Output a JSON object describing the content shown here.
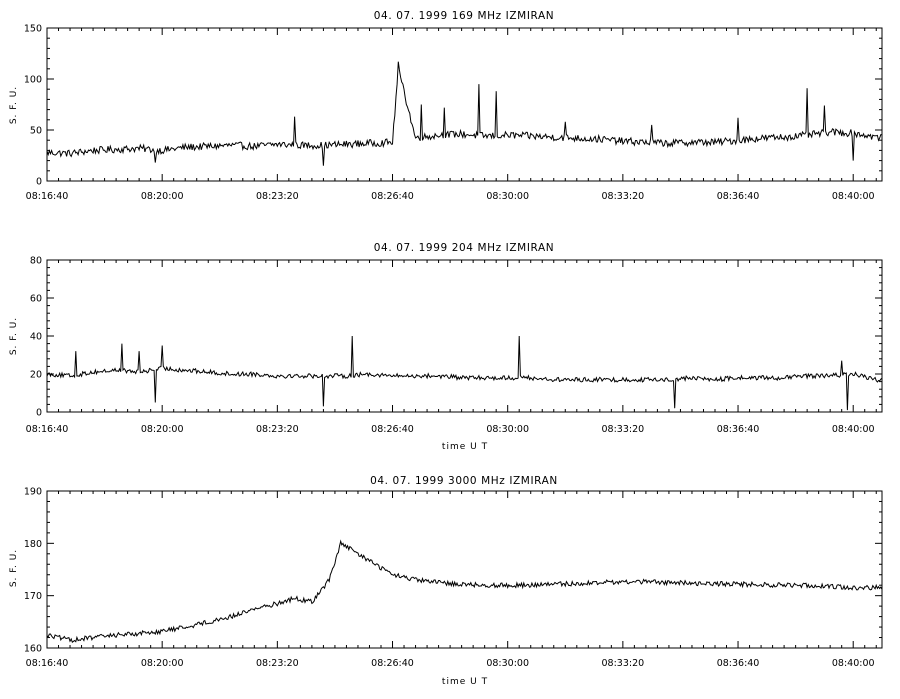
{
  "chart_data": [
    {
      "type": "line",
      "title": "04. 07. 1999   169 MHz   IZMIRAN",
      "ylabel": "S. F. U.",
      "xlabel": "",
      "ylim": [
        0,
        150
      ],
      "yticks": [
        0,
        50,
        100,
        150
      ],
      "xlim_seconds": [
        0,
        1450
      ],
      "xtick_labels": [
        "08:16:40",
        "08:20:00",
        "08:23:20",
        "08:26:40",
        "08:30:00",
        "08:33:20",
        "08:36:40",
        "08:40:00"
      ],
      "grid": false,
      "series": [
        {
          "time": [
            "08:16:40",
            "08:17:20",
            "08:18:00",
            "08:18:40",
            "08:19:20",
            "08:20:00",
            "08:20:40",
            "08:21:20",
            "08:22:00",
            "08:22:40",
            "08:23:20",
            "08:24:00",
            "08:24:40",
            "08:25:20",
            "08:26:00",
            "08:26:40",
            "08:26:50",
            "08:27:20",
            "08:28:00",
            "08:28:40",
            "08:29:20",
            "08:30:00",
            "08:30:40",
            "08:31:20",
            "08:32:00",
            "08:32:40",
            "08:33:20",
            "08:34:00",
            "08:34:40",
            "08:35:20",
            "08:36:00",
            "08:36:40",
            "08:37:20",
            "08:38:00",
            "08:38:40",
            "08:39:20",
            "08:40:00",
            "08:40:40",
            "08:41:20",
            "08:41:50"
          ],
          "values": [
            28,
            27,
            30,
            31,
            32,
            30,
            33,
            34,
            35,
            34,
            36,
            35,
            35,
            36,
            37,
            38,
            110,
            42,
            45,
            46,
            44,
            45,
            44,
            43,
            42,
            41,
            39,
            38,
            37,
            38,
            38,
            40,
            42,
            43,
            45,
            48,
            47,
            43,
            41,
            42
          ]
        }
      ],
      "spikes": [
        {
          "time": "08:19:48",
          "value": 18
        },
        {
          "time": "08:24:40",
          "value": 15
        },
        {
          "time": "08:23:50",
          "value": 63
        },
        {
          "time": "08:26:50",
          "value": 117
        },
        {
          "time": "08:27:00",
          "value": 90
        },
        {
          "time": "08:27:30",
          "value": 75
        },
        {
          "time": "08:28:10",
          "value": 72
        },
        {
          "time": "08:29:10",
          "value": 95
        },
        {
          "time": "08:29:40",
          "value": 88
        },
        {
          "time": "08:31:40",
          "value": 58
        },
        {
          "time": "08:34:10",
          "value": 55
        },
        {
          "time": "08:36:40",
          "value": 62
        },
        {
          "time": "08:38:40",
          "value": 91
        },
        {
          "time": "08:39:10",
          "value": 74
        },
        {
          "time": "08:40:00",
          "value": 20
        }
      ]
    },
    {
      "type": "line",
      "title": "04. 07. 1999   204 MHz   IZMIRAN",
      "ylabel": "S. F. U.",
      "xlabel": "time  U T",
      "ylim": [
        0,
        80
      ],
      "yticks": [
        0,
        20,
        40,
        60,
        80
      ],
      "xlim_seconds": [
        0,
        1450
      ],
      "xtick_labels": [
        "08:16:40",
        "08:20:00",
        "08:23:20",
        "08:26:40",
        "08:30:00",
        "08:33:20",
        "08:36:40",
        "08:40:00"
      ],
      "grid": false,
      "series": [
        {
          "time": [
            "08:16:40",
            "08:17:20",
            "08:18:00",
            "08:18:40",
            "08:19:20",
            "08:20:00",
            "08:20:40",
            "08:21:20",
            "08:22:00",
            "08:22:40",
            "08:23:20",
            "08:24:00",
            "08:24:40",
            "08:25:20",
            "08:26:00",
            "08:26:40",
            "08:27:20",
            "08:28:00",
            "08:28:40",
            "08:29:20",
            "08:30:00",
            "08:30:40",
            "08:31:20",
            "08:32:00",
            "08:32:40",
            "08:33:20",
            "08:34:00",
            "08:34:40",
            "08:35:20",
            "08:36:00",
            "08:36:40",
            "08:37:20",
            "08:38:00",
            "08:38:40",
            "08:39:20",
            "08:40:00",
            "08:40:40",
            "08:41:20",
            "08:41:50"
          ],
          "values": [
            20,
            19,
            21,
            22,
            21,
            23,
            22,
            21,
            20,
            20,
            19,
            19,
            19,
            19,
            20,
            19,
            19,
            19,
            18,
            18,
            18,
            18,
            17,
            17,
            17,
            17,
            17,
            17,
            18,
            17,
            18,
            18,
            18,
            19,
            19,
            20,
            17,
            16,
            17
          ]
        }
      ],
      "spikes": [
        {
          "time": "08:17:30",
          "value": 32
        },
        {
          "time": "08:18:50",
          "value": 36
        },
        {
          "time": "08:19:20",
          "value": 32
        },
        {
          "time": "08:19:48",
          "value": 5
        },
        {
          "time": "08:20:00",
          "value": 35
        },
        {
          "time": "08:24:40",
          "value": 3
        },
        {
          "time": "08:25:30",
          "value": 40
        },
        {
          "time": "08:30:20",
          "value": 40
        },
        {
          "time": "08:34:50",
          "value": 2
        },
        {
          "time": "08:39:40",
          "value": 27
        },
        {
          "time": "08:39:50",
          "value": 1
        }
      ]
    },
    {
      "type": "line",
      "title": "04. 07. 1999   3000 MHz   IZMIRAN",
      "ylabel": "S. F. U.",
      "xlabel": "time  U T",
      "ylim": [
        160,
        190
      ],
      "yticks": [
        160,
        170,
        180,
        190
      ],
      "xlim_seconds": [
        0,
        1450
      ],
      "xtick_labels": [
        "08:16:40",
        "08:20:00",
        "08:23:20",
        "08:26:40",
        "08:30:00",
        "08:33:20",
        "08:36:40",
        "08:40:00"
      ],
      "grid": false,
      "series": [
        {
          "time": [
            "08:16:40",
            "08:17:20",
            "08:18:00",
            "08:18:40",
            "08:19:20",
            "08:20:00",
            "08:20:40",
            "08:21:20",
            "08:22:00",
            "08:22:40",
            "08:23:20",
            "08:23:50",
            "08:24:20",
            "08:24:50",
            "08:25:10",
            "08:25:40",
            "08:26:10",
            "08:26:40",
            "08:27:20",
            "08:28:00",
            "08:28:40",
            "08:29:20",
            "08:30:00",
            "08:30:40",
            "08:31:20",
            "08:32:00",
            "08:32:40",
            "08:33:20",
            "08:34:00",
            "08:34:40",
            "08:35:20",
            "08:36:00",
            "08:36:40",
            "08:37:20",
            "08:38:00",
            "08:38:40",
            "08:39:20",
            "08:40:00",
            "08:40:40",
            "08:41:20",
            "08:41:50"
          ],
          "values": [
            162.5,
            161.5,
            162,
            162.5,
            162.8,
            163.2,
            164,
            165,
            166,
            167.5,
            168.5,
            169.5,
            168.8,
            173,
            180,
            178,
            176,
            174,
            173,
            172.5,
            172.2,
            172,
            172,
            172,
            172.2,
            172.3,
            172.5,
            172.6,
            172.7,
            172.5,
            172.4,
            172.3,
            172.2,
            172.1,
            172,
            172,
            171.8,
            171.5,
            171.6,
            171.8,
            172
          ]
        }
      ]
    }
  ]
}
